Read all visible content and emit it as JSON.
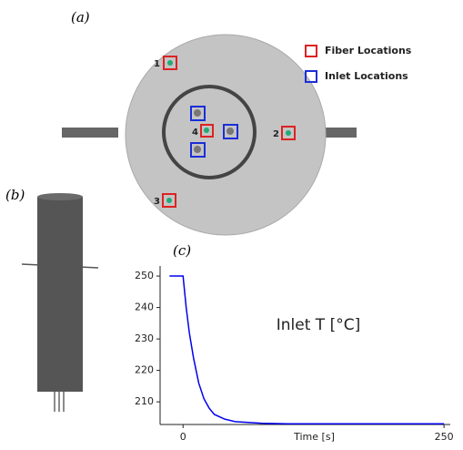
{
  "panel_labels": [
    "(a)",
    "(b)",
    "(c)"
  ],
  "legend": [
    "Fiber Locations",
    "Inlet Locations"
  ],
  "fiber_numbers": [
    "1",
    "2",
    "3",
    "4"
  ],
  "chart_data": {
    "type": "line",
    "annotation": "Inlet T [°C]",
    "xlabel": "Time [s]",
    "x": [
      -13,
      0,
      3,
      6,
      10,
      15,
      20,
      25,
      30,
      40,
      50,
      75,
      100,
      150,
      200,
      250
    ],
    "series": [
      {
        "color": "#0000ee",
        "values": [
          250,
          250,
          240,
          232,
          224,
          216,
          211,
          208,
          206,
          204.5,
          203.7,
          203.2,
          203,
          203,
          203,
          203
        ]
      }
    ],
    "xlim": [
      -22,
      256
    ],
    "xticks": [
      0,
      250
    ],
    "ylim": [
      202.8,
      253.2
    ],
    "yticks": [
      210,
      220,
      230,
      240,
      250
    ]
  }
}
